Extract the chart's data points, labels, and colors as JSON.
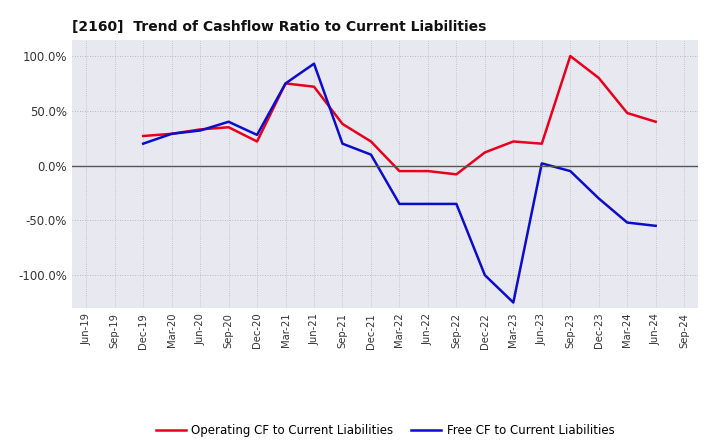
{
  "title": "[2160]  Trend of Cashflow Ratio to Current Liabilities",
  "x_labels": [
    "Jun-19",
    "Sep-19",
    "Dec-19",
    "Mar-20",
    "Jun-20",
    "Sep-20",
    "Dec-20",
    "Mar-21",
    "Jun-21",
    "Sep-21",
    "Dec-21",
    "Mar-22",
    "Jun-22",
    "Sep-22",
    "Dec-22",
    "Mar-23",
    "Jun-23",
    "Sep-23",
    "Dec-23",
    "Mar-24",
    "Jun-24",
    "Sep-24"
  ],
  "operating_cf": [
    null,
    null,
    27,
    29,
    33,
    35,
    22,
    75,
    72,
    38,
    22,
    -5,
    -5,
    -8,
    12,
    22,
    20,
    100,
    80,
    48,
    40,
    null
  ],
  "free_cf": [
    null,
    null,
    20,
    29,
    32,
    40,
    28,
    75,
    93,
    20,
    10,
    -35,
    -35,
    -35,
    -100,
    -125,
    2,
    -5,
    -30,
    -52,
    -55,
    null
  ],
  "operating_color": "#e8001c",
  "free_color": "#0c0ccc",
  "ylim": [
    -130,
    115
  ],
  "yticks": [
    -100,
    -50,
    0,
    50,
    100
  ],
  "background_color": "#ffffff",
  "grid_color": "#aaaaaa",
  "plot_bgcolor": "#e8e8f0",
  "legend_labels": [
    "Operating CF to Current Liabilities",
    "Free CF to Current Liabilities"
  ]
}
